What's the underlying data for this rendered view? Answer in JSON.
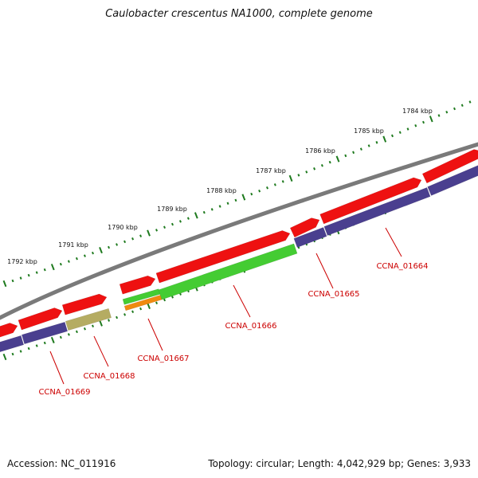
{
  "title": "Caulobacter crescentus NA1000, complete genome",
  "footer": {
    "accession": "Accession: NC_011916",
    "summary": "Topology: circular; Length: 4,042,929 bp; Genes: 3,933"
  },
  "colors": {
    "backbone": "#7a7a7a",
    "forward_cds": "#ee1111",
    "reverse_cds": "#4a3f8f",
    "rna_green": "#44cc33",
    "orange_feature": "#f08a10",
    "olive_feature": "#b5ac62",
    "tick": "#1e7a1e",
    "label_red": "#cc0000"
  },
  "scale_labels": [
    "1784 kbp",
    "1785 kbp",
    "1786 kbp",
    "1787 kbp",
    "1788 kbp",
    "1789 kbp",
    "1790 kbp",
    "1791 kbp",
    "1792 kbp"
  ],
  "locus_labels": [
    "CCNA_01664",
    "CCNA_01665",
    "CCNA_01666",
    "CCNA_01667",
    "CCNA_01668",
    "CCNA_01669"
  ]
}
